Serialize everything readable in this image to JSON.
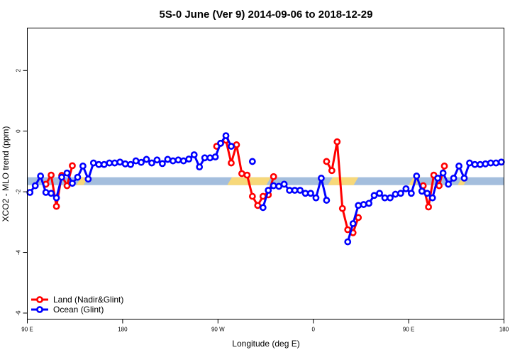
{
  "chart_data": {
    "type": "line",
    "title": "5S-0 June (Ver 9)   2014-09-06 to 2018-12-29",
    "xlabel": "Longitude (deg E)",
    "ylabel": "XCO2 - MLO trend (ppm)",
    "xlim": [
      0,
      360
    ],
    "ylim": [
      -6.2,
      3.4
    ],
    "x_ticks": [
      {
        "value": 0,
        "label": "90 E"
      },
      {
        "value": 72,
        "label": "180"
      },
      {
        "value": 144,
        "label": "90 W"
      },
      {
        "value": 216,
        "label": "0"
      },
      {
        "value": 288,
        "label": "90 E"
      },
      {
        "value": 360,
        "label": "180"
      }
    ],
    "y_ticks": [
      {
        "value": 2,
        "label": "2"
      },
      {
        "value": 0,
        "label": "0"
      },
      {
        "value": -2,
        "label": "-2"
      },
      {
        "value": -4,
        "label": "-4"
      },
      {
        "value": -6,
        "label": "-6"
      }
    ],
    "band": {
      "y_low": -1.78,
      "y_high": -1.52,
      "ocean_color": "#a4bedd",
      "land_color": "#f7d87a",
      "land_ranges": [
        [
          37,
          46
        ],
        [
          151,
          184
        ],
        [
          227,
          250
        ],
        [
          288,
          297
        ],
        [
          325,
          333
        ]
      ]
    },
    "series": [
      {
        "name": "Land (Nadir&Glint)",
        "color": "#ff0000",
        "segments": [
          [
            [
              14,
              -1.75
            ],
            [
              18,
              -1.45
            ],
            [
              22,
              -2.48
            ],
            [
              26,
              -1.46
            ],
            [
              30,
              -1.8
            ],
            [
              34,
              -1.14
            ]
          ],
          [
            [
              143,
              -0.5
            ],
            [
              146,
              -0.4
            ],
            [
              150,
              -0.3
            ],
            [
              154,
              -1.05
            ],
            [
              158,
              -0.45
            ],
            [
              162,
              -1.4
            ],
            [
              166,
              -1.45
            ],
            [
              170,
              -2.15
            ],
            [
              174,
              -2.45
            ],
            [
              178,
              -2.15
            ],
            [
              182,
              -2.1
            ],
            [
              186,
              -1.5
            ]
          ],
          [
            [
              226,
              -1.0
            ],
            [
              230,
              -1.3
            ],
            [
              234,
              -0.35
            ],
            [
              238,
              -2.55
            ],
            [
              242,
              -3.25
            ],
            [
              246,
              -3.35
            ],
            [
              250,
              -2.85
            ]
          ],
          [
            [
              299,
              -1.8
            ],
            [
              303,
              -2.5
            ],
            [
              307,
              -1.45
            ],
            [
              311,
              -1.8
            ],
            [
              315,
              -1.15
            ]
          ]
        ]
      },
      {
        "name": "Ocean (Glint)",
        "color": "#0000ff",
        "segments": [
          [
            [
              2,
              -2.02
            ],
            [
              6,
              -1.8
            ],
            [
              10,
              -1.48
            ],
            [
              14,
              -2.02
            ],
            [
              18,
              -2.05
            ],
            [
              22,
              -2.2
            ],
            [
              26,
              -1.52
            ],
            [
              30,
              -1.38
            ],
            [
              34,
              -1.72
            ],
            [
              38,
              -1.52
            ],
            [
              42,
              -1.15
            ],
            [
              46,
              -1.58
            ],
            [
              50,
              -1.05
            ],
            [
              54,
              -1.1
            ],
            [
              58,
              -1.1
            ],
            [
              62,
              -1.05
            ],
            [
              66,
              -1.05
            ],
            [
              70,
              -1.02
            ],
            [
              74,
              -1.08
            ],
            [
              78,
              -1.1
            ],
            [
              82,
              -0.98
            ],
            [
              86,
              -1.03
            ],
            [
              90,
              -0.93
            ],
            [
              94,
              -1.05
            ],
            [
              98,
              -0.95
            ],
            [
              102,
              -1.07
            ],
            [
              106,
              -0.93
            ],
            [
              110,
              -0.98
            ],
            [
              114,
              -0.95
            ],
            [
              118,
              -0.98
            ],
            [
              122,
              -0.92
            ],
            [
              126,
              -0.78
            ],
            [
              130,
              -1.18
            ],
            [
              134,
              -0.88
            ],
            [
              138,
              -0.88
            ],
            [
              142,
              -0.85
            ],
            [
              146,
              -0.4
            ],
            [
              150,
              -0.15
            ],
            [
              154,
              -0.5
            ]
          ],
          [
            [
              170,
              -1.0
            ]
          ],
          [
            [
              178,
              -2.52
            ],
            [
              182,
              -1.95
            ],
            [
              186,
              -1.8
            ],
            [
              190,
              -1.82
            ],
            [
              194,
              -1.75
            ],
            [
              198,
              -1.95
            ],
            [
              202,
              -1.95
            ],
            [
              206,
              -1.95
            ],
            [
              210,
              -2.05
            ],
            [
              214,
              -2.05
            ],
            [
              218,
              -2.2
            ],
            [
              222,
              -1.55
            ],
            [
              226,
              -2.28
            ]
          ],
          [
            [
              242,
              -3.65
            ],
            [
              246,
              -3.05
            ],
            [
              250,
              -2.45
            ],
            [
              254,
              -2.42
            ],
            [
              258,
              -2.38
            ],
            [
              262,
              -2.12
            ],
            [
              266,
              -2.05
            ],
            [
              270,
              -2.2
            ],
            [
              274,
              -2.2
            ],
            [
              278,
              -2.08
            ],
            [
              282,
              -2.05
            ],
            [
              286,
              -1.9
            ],
            [
              290,
              -2.05
            ],
            [
              294,
              -1.48
            ],
            [
              298,
              -1.98
            ],
            [
              302,
              -2.05
            ],
            [
              306,
              -2.2
            ],
            [
              310,
              -1.55
            ],
            [
              314,
              -1.38
            ],
            [
              318,
              -1.75
            ],
            [
              322,
              -1.55
            ],
            [
              326,
              -1.15
            ],
            [
              330,
              -1.55
            ],
            [
              334,
              -1.05
            ],
            [
              338,
              -1.1
            ],
            [
              342,
              -1.1
            ],
            [
              346,
              -1.08
            ],
            [
              350,
              -1.05
            ],
            [
              354,
              -1.05
            ],
            [
              358,
              -1.02
            ]
          ]
        ]
      }
    ],
    "legend_position": "bottom-left",
    "grid": false
  }
}
